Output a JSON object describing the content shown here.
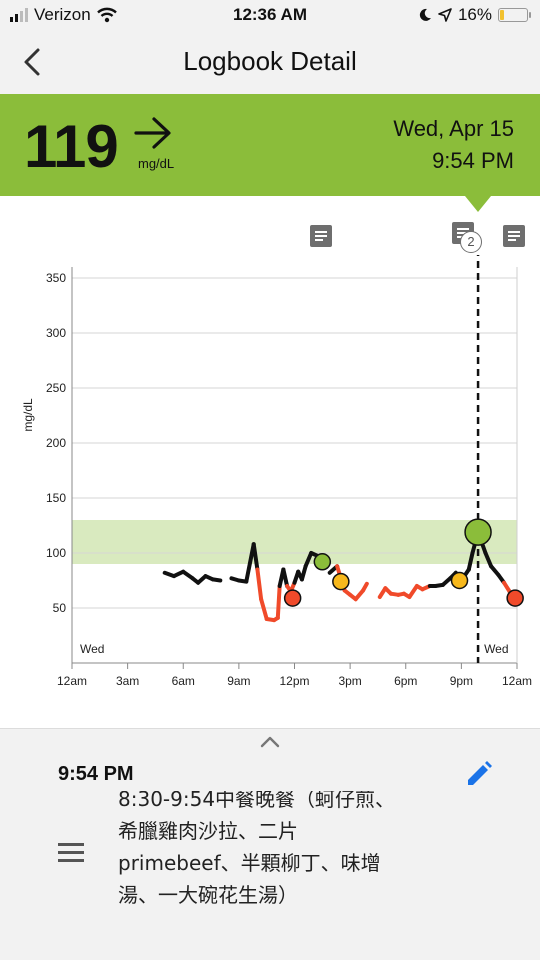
{
  "status_bar": {
    "carrier": "Verizon",
    "time": "12:36 AM",
    "battery": "16%",
    "battery_level": 0.16,
    "icons": [
      "signal-icon",
      "wifi-icon",
      "moon-icon",
      "location-icon",
      "battery-icon"
    ]
  },
  "nav": {
    "back_icon": "chevron-left-icon",
    "title": "Logbook Detail"
  },
  "reading": {
    "value": "119",
    "unit": "mg/dL",
    "trend_icon": "arrow-right-icon",
    "date": "Wed, Apr 15",
    "time": "9:54 PM",
    "color": "#8bbd3a"
  },
  "note_markers": {
    "icon": "note-icon",
    "count_badge": "2"
  },
  "chart_data": {
    "type": "line",
    "ylabel": "mg/dL",
    "yticks": [
      50,
      100,
      150,
      200,
      250,
      300,
      350
    ],
    "ylim": [
      0,
      360
    ],
    "xlim": [
      0,
      24
    ],
    "xtick_labels": [
      "12am",
      "3am",
      "6am",
      "9am",
      "12pm",
      "3pm",
      "6pm",
      "9pm",
      "12am"
    ],
    "day_labels": [
      "Wed",
      "Wed"
    ],
    "target_range": [
      90,
      130
    ],
    "selected_time_hours": 21.9,
    "colors": {
      "in_range": "#111111",
      "low": "#f04a2a",
      "target_band": "#d9eabf"
    },
    "series": [
      {
        "values": [
          [
            4.4,
            88
          ],
          [
            5.0,
            82
          ],
          [
            5.5,
            79
          ],
          [
            6.0,
            83
          ],
          [
            6.5,
            77
          ],
          [
            6.8,
            73
          ],
          [
            7.2,
            79
          ],
          [
            7.6,
            76
          ],
          [
            8.0,
            75
          ],
          [
            8.6,
            77
          ],
          [
            9.0,
            75
          ],
          [
            9.4,
            74
          ],
          [
            9.8,
            108
          ],
          [
            10.0,
            85
          ],
          [
            10.2,
            58
          ],
          [
            10.5,
            40
          ],
          [
            10.9,
            39
          ],
          [
            11.1,
            41
          ],
          [
            11.2,
            70
          ],
          [
            11.4,
            85
          ],
          [
            11.6,
            70
          ],
          [
            11.8,
            65
          ],
          [
            12.0,
            73
          ],
          [
            12.2,
            83
          ],
          [
            12.4,
            76
          ],
          [
            12.6,
            88
          ],
          [
            12.9,
            100
          ],
          [
            13.3,
            97
          ],
          [
            13.9,
            82
          ],
          [
            14.3,
            88
          ],
          [
            14.7,
            66
          ],
          [
            15.0,
            62
          ],
          [
            15.3,
            58
          ],
          [
            15.7,
            66
          ],
          [
            15.9,
            72
          ],
          [
            16.6,
            60
          ],
          [
            16.9,
            68
          ],
          [
            17.2,
            63
          ],
          [
            17.6,
            62
          ],
          [
            17.9,
            63
          ],
          [
            18.2,
            60
          ],
          [
            18.6,
            70
          ],
          [
            18.9,
            67
          ],
          [
            19.3,
            70
          ],
          [
            19.6,
            70
          ],
          [
            20.0,
            71
          ],
          [
            20.4,
            77
          ],
          [
            20.7,
            82
          ],
          [
            21.0,
            75
          ],
          [
            21.4,
            85
          ],
          [
            21.6,
            100
          ],
          [
            21.9,
            119
          ],
          [
            22.3,
            100
          ],
          [
            22.6,
            88
          ],
          [
            23.0,
            80
          ],
          [
            23.3,
            73
          ],
          [
            23.6,
            65
          ],
          [
            23.9,
            57
          ]
        ]
      }
    ],
    "markers": [
      {
        "x": 11.9,
        "y": 59,
        "color": "#f04a2a"
      },
      {
        "x": 13.5,
        "y": 92,
        "color": "#8bbd3a"
      },
      {
        "x": 14.5,
        "y": 74,
        "color": "#f7b81c"
      },
      {
        "x": 20.9,
        "y": 75,
        "color": "#f7b81c"
      },
      {
        "x": 21.9,
        "y": 119,
        "color": "#8bbd3a",
        "selected": true
      },
      {
        "x": 23.9,
        "y": 59,
        "color": "#f04a2a"
      }
    ]
  },
  "detail": {
    "time": "9:54 PM",
    "expand_icon": "chevron-up-icon",
    "edit_icon": "pencil-icon",
    "note_icon": "notes-icon",
    "note_lines": [
      "8:30-9:54中餐晚餐（蚵仔煎、",
      "希臘雞肉沙拉、二片",
      "primebeef、半顆柳丁、味增",
      "湯、一大碗花生湯）"
    ]
  }
}
